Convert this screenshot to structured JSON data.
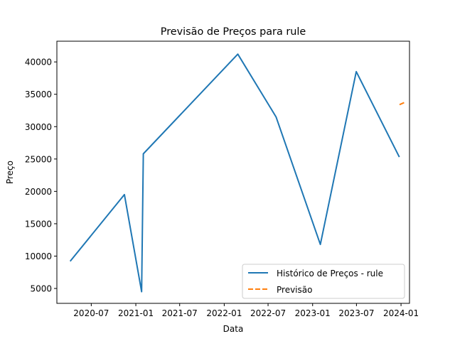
{
  "chart_data": {
    "type": "line",
    "title": "Previsão de Preços para rule",
    "xlabel": "Data",
    "ylabel": "Preço",
    "x_ticks": [
      "2020-07",
      "2021-01",
      "2021-07",
      "2022-01",
      "2022-07",
      "2023-01",
      "2023-07",
      "2024-01"
    ],
    "y_ticks": [
      5000,
      10000,
      15000,
      20000,
      25000,
      30000,
      35000,
      40000
    ],
    "xlim": [
      "2020-02-10",
      "2024-02-05"
    ],
    "ylim": [
      2700,
      43200
    ],
    "grid": false,
    "legend_position": "lower right",
    "series": [
      {
        "name": "Histórico de Preços - rule",
        "color": "#1f77b4",
        "style": "solid",
        "points": [
          {
            "x": "2020-04-05",
            "y": 9200
          },
          {
            "x": "2020-11-15",
            "y": 19500
          },
          {
            "x": "2021-01-25",
            "y": 4500
          },
          {
            "x": "2021-02-01",
            "y": 25800
          },
          {
            "x": "2022-02-26",
            "y": 41200
          },
          {
            "x": "2022-08-03",
            "y": 31500
          },
          {
            "x": "2023-02-02",
            "y": 11800
          },
          {
            "x": "2023-06-30",
            "y": 38500
          },
          {
            "x": "2023-12-25",
            "y": 25300
          }
        ]
      },
      {
        "name": "Previsão",
        "color": "#ff7f0e",
        "style": "dashed",
        "points": [
          {
            "x": "2023-12-26",
            "y": 33400
          },
          {
            "x": "2024-01-16",
            "y": 33750
          }
        ]
      }
    ]
  }
}
